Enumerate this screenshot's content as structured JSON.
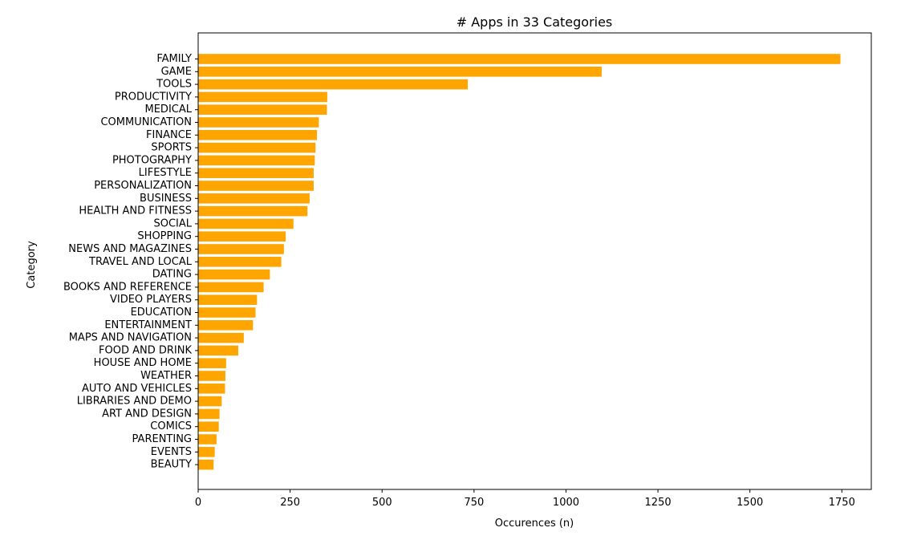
{
  "chart_data": {
    "type": "bar",
    "orientation": "horizontal",
    "title": "# Apps in 33 Categories",
    "xlabel": "Occurences (n)",
    "ylabel": "Category",
    "xlim": [
      0,
      1830
    ],
    "xticks": [
      0,
      250,
      500,
      750,
      1000,
      1250,
      1500,
      1750
    ],
    "grid": false,
    "bar_color": "#ffa500",
    "categories": [
      "FAMILY",
      "GAME",
      "TOOLS",
      "PRODUCTIVITY",
      "MEDICAL",
      "COMMUNICATION",
      "FINANCE",
      "SPORTS",
      "PHOTOGRAPHY",
      "LIFESTYLE",
      "PERSONALIZATION",
      "BUSINESS",
      "HEALTH AND FITNESS",
      "SOCIAL",
      "SHOPPING",
      "NEWS AND MAGAZINES",
      "TRAVEL AND LOCAL",
      "DATING",
      "BOOKS AND REFERENCE",
      "VIDEO PLAYERS",
      "EDUCATION",
      "ENTERTAINMENT",
      "MAPS AND NAVIGATION",
      "FOOD AND DRINK",
      "HOUSE AND HOME",
      "WEATHER",
      "AUTO AND VEHICLES",
      "LIBRARIES AND DEMO",
      "ART AND DESIGN",
      "COMICS",
      "PARENTING",
      "EVENTS",
      "BEAUTY"
    ],
    "values": [
      1746,
      1097,
      733,
      351,
      350,
      328,
      323,
      319,
      317,
      314,
      314,
      303,
      297,
      259,
      238,
      233,
      226,
      195,
      178,
      160,
      156,
      149,
      124,
      109,
      76,
      74,
      73,
      64,
      58,
      56,
      50,
      45,
      42
    ]
  }
}
